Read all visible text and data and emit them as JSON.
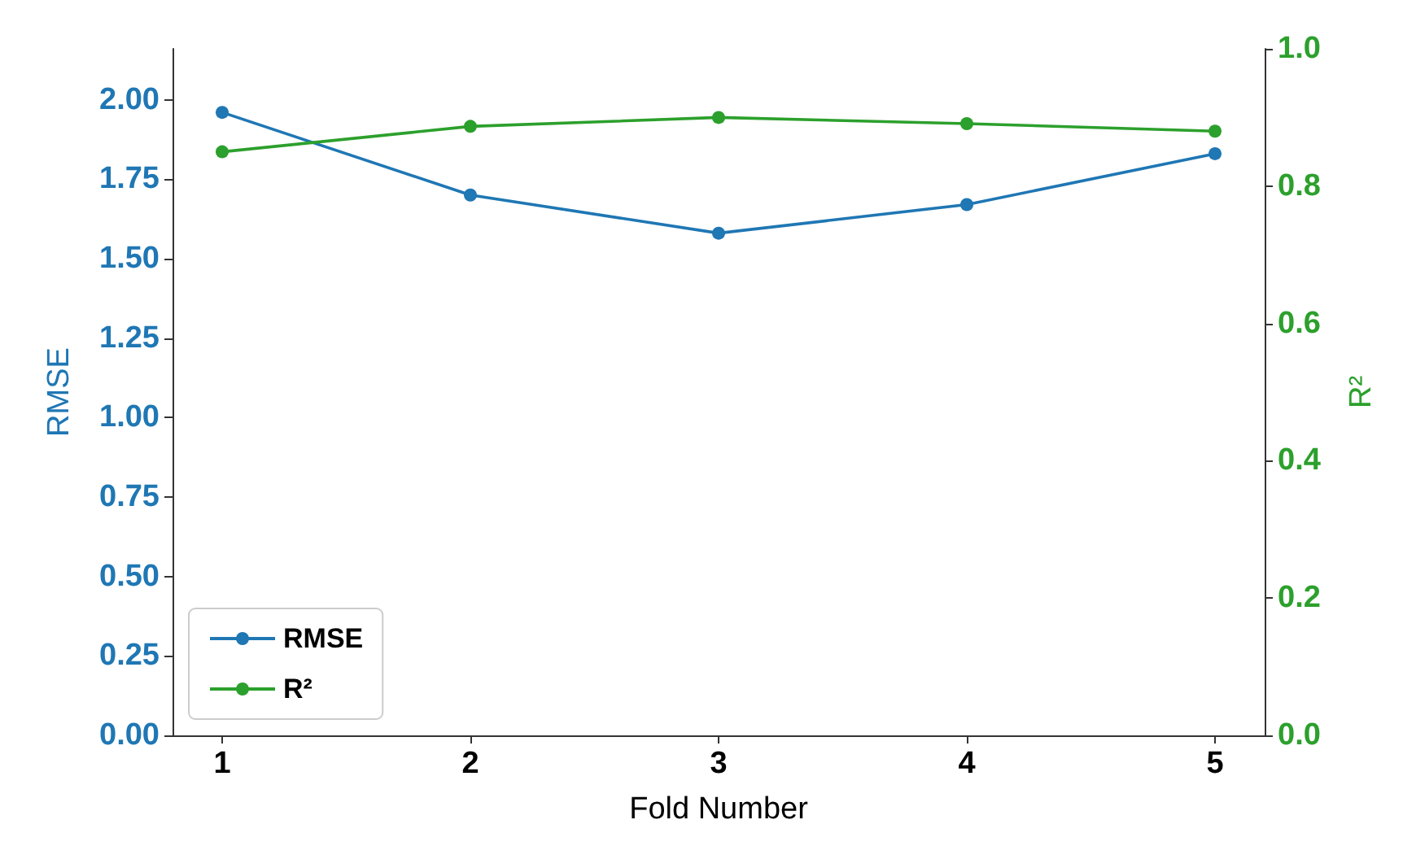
{
  "chart_data": {
    "type": "line",
    "xlabel": "Fold Number",
    "ylabel": "RMSE",
    "y2label": "R²",
    "x": [
      1,
      2,
      3,
      4,
      5
    ],
    "series": [
      {
        "name": "RMSE",
        "color": "#1f77b4",
        "values": [
          1.96,
          1.7,
          1.58,
          1.67,
          1.83
        ]
      },
      {
        "name": "R²",
        "color": "#2ca02c",
        "axis": "y2",
        "values": [
          0.85,
          0.887,
          0.9,
          0.891,
          0.88
        ]
      }
    ],
    "xlim": [
      0.8,
      5.2
    ],
    "xticks": [
      1,
      2,
      3,
      4,
      5
    ],
    "ylim": [
      0,
      2.16
    ],
    "yticks": [
      {
        "value": 0,
        "label": "0.00"
      },
      0.25,
      {
        "value": 0.5,
        "label": "0.50"
      },
      0.75,
      {
        "value": 1,
        "label": "1.00"
      },
      1.25,
      {
        "value": 1.5,
        "label": "1.50"
      },
      1.75,
      {
        "value": 2,
        "label": "2.00"
      }
    ],
    "y2lim": [
      0,
      1
    ],
    "y2ticks": [
      {
        "value": 0,
        "label": "0.0"
      },
      0.2,
      0.4,
      0.6,
      0.8,
      {
        "value": 1,
        "label": "1.0"
      }
    ],
    "legend": "bottom left",
    "grid": false,
    "marker": "circle",
    "line_style": "solid"
  }
}
